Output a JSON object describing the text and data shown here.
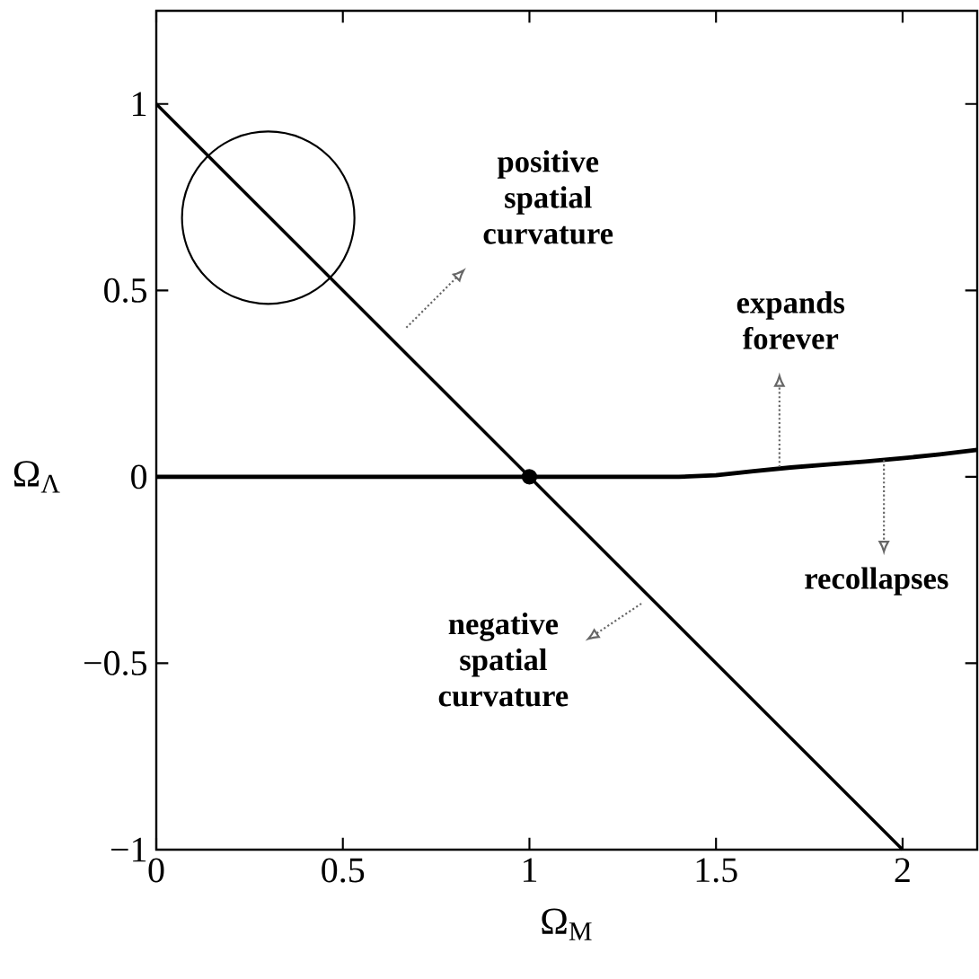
{
  "chart_data": {
    "type": "line",
    "xlabel": "Ω$_{M}$",
    "ylabel": "Ω$_{Λ}$",
    "xlim": [
      0,
      2.2
    ],
    "ylim": [
      -1,
      1.25
    ],
    "xticks": [
      0,
      0.5,
      1,
      1.5,
      2
    ],
    "yticks": [
      {
        "value": -1,
        "label": "−1"
      },
      {
        "value": -0.5,
        "label": "−0.5"
      },
      0,
      0.5,
      1
    ],
    "series": [
      {
        "color": "#000000",
        "x": [
          0,
          2
        ],
        "values": [
          1,
          -1
        ]
      },
      {
        "color": "#000000",
        "x": [
          0,
          1,
          1.2,
          1.4,
          1.5,
          1.6,
          1.7,
          1.8,
          1.9,
          2.0,
          2.1,
          2.2
        ],
        "values": [
          0,
          0,
          0,
          0,
          0.004,
          0.015,
          0.025,
          0.033,
          0.041,
          0.05,
          0.06,
          0.072
        ]
      },
      {
        "type": "scatter",
        "color": "#000000",
        "x": [
          1
        ],
        "values": [
          0
        ]
      }
    ],
    "annotations": [
      "positive spatial curvature",
      {
        "text": "expands forever",
        "x": 1.67,
        "y": 0.026
      },
      {
        "text": "recollapses",
        "x": 1.95,
        "y": 0.045
      },
      "negative spatial curvature"
    ]
  }
}
